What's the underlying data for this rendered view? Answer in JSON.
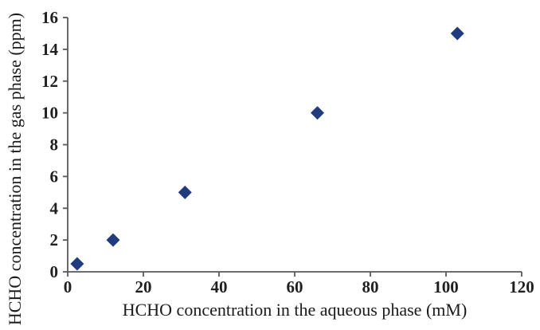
{
  "chart_data": {
    "type": "scatter",
    "title": "",
    "xlabel": "HCHO concentration in the aqueous phase (mM)",
    "ylabel": "HCHO concentration in the gas phase (ppm)",
    "xlim": [
      0,
      120
    ],
    "ylim": [
      0,
      16
    ],
    "x_ticks": [
      0,
      20,
      40,
      60,
      80,
      100,
      120
    ],
    "y_ticks": [
      0,
      2,
      4,
      6,
      8,
      10,
      12,
      14,
      16
    ],
    "grid": false,
    "legend": "none",
    "series": [
      {
        "marker": "diamond",
        "color": "#203c7c",
        "points": [
          {
            "x": 2.5,
            "y": 0.5
          },
          {
            "x": 12,
            "y": 2
          },
          {
            "x": 31,
            "y": 5
          },
          {
            "x": 66,
            "y": 10
          },
          {
            "x": 103,
            "y": 15
          }
        ]
      }
    ],
    "axis_color": "#595959",
    "tick_text_color": "#1f1f1f",
    "title_text_color": "#1a1a1a",
    "background_color": "#ffffff"
  }
}
